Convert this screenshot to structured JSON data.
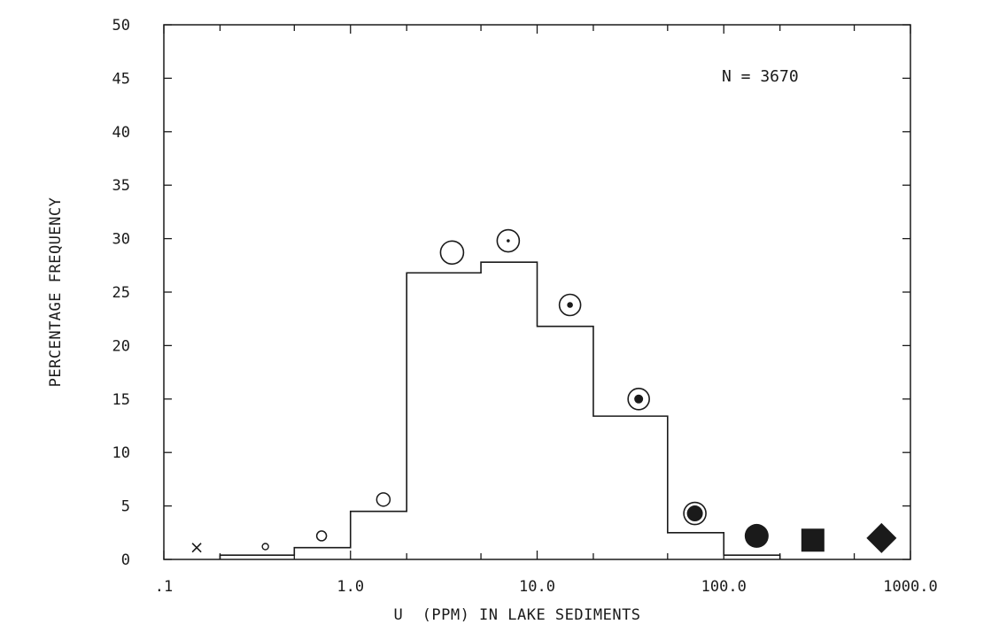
{
  "chart_data": {
    "type": "bar",
    "subtype": "histogram-step",
    "xscale": "log",
    "xlabel": "U  (PPM) IN LAKE SEDIMENTS",
    "ylabel": "PERCENTAGE FREQUENCY",
    "xlim": [
      0.1,
      1000
    ],
    "ylim": [
      0,
      50
    ],
    "grid": false,
    "yticks": [
      0,
      5,
      10,
      15,
      20,
      25,
      30,
      35,
      40,
      45,
      50
    ],
    "ytick_labels": [
      "0",
      "5",
      "10",
      "15",
      "20",
      "25",
      "30",
      "35",
      "40",
      "45",
      "50"
    ],
    "xticks": [
      0.1,
      1,
      10,
      100,
      1000
    ],
    "xtick_labels": [
      ".1",
      "1.0",
      "10.0",
      "100.0",
      "1000.0"
    ],
    "annotation": "N = 3670",
    "bins": [
      {
        "lo": 0.2,
        "hi": 0.5,
        "value": 0.4
      },
      {
        "lo": 0.5,
        "hi": 1,
        "value": 1.1
      },
      {
        "lo": 1,
        "hi": 2,
        "value": 4.5
      },
      {
        "lo": 2,
        "hi": 5,
        "value": 26.8
      },
      {
        "lo": 5,
        "hi": 10,
        "value": 27.8
      },
      {
        "lo": 10,
        "hi": 20,
        "value": 21.8
      },
      {
        "lo": 20,
        "hi": 50,
        "value": 13.4
      },
      {
        "lo": 50,
        "hi": 100,
        "value": 2.5
      },
      {
        "lo": 100,
        "hi": 200,
        "value": 0.4
      }
    ],
    "symbols": [
      {
        "x": 0.15,
        "y": 1.1,
        "shape": "x-mark"
      },
      {
        "x": 0.35,
        "y": 1.2,
        "shape": "tiny-open-circle"
      },
      {
        "x": 0.7,
        "y": 2.2,
        "shape": "small-open-circle"
      },
      {
        "x": 1.5,
        "y": 5.6,
        "shape": "medium-open-circle"
      },
      {
        "x": 3.5,
        "y": 28.7,
        "shape": "large-open-circle"
      },
      {
        "x": 7,
        "y": 29.8,
        "shape": "circle-with-dot"
      },
      {
        "x": 15,
        "y": 23.8,
        "shape": "circle-with-small-dot"
      },
      {
        "x": 35,
        "y": 15,
        "shape": "circle-with-medium-dot"
      },
      {
        "x": 70,
        "y": 4.3,
        "shape": "circle-with-large-dot"
      },
      {
        "x": 150,
        "y": 2.2,
        "shape": "filled-circle"
      },
      {
        "x": 300,
        "y": 1.8,
        "shape": "filled-square"
      },
      {
        "x": 700,
        "y": 2,
        "shape": "filled-diamond"
      }
    ]
  }
}
